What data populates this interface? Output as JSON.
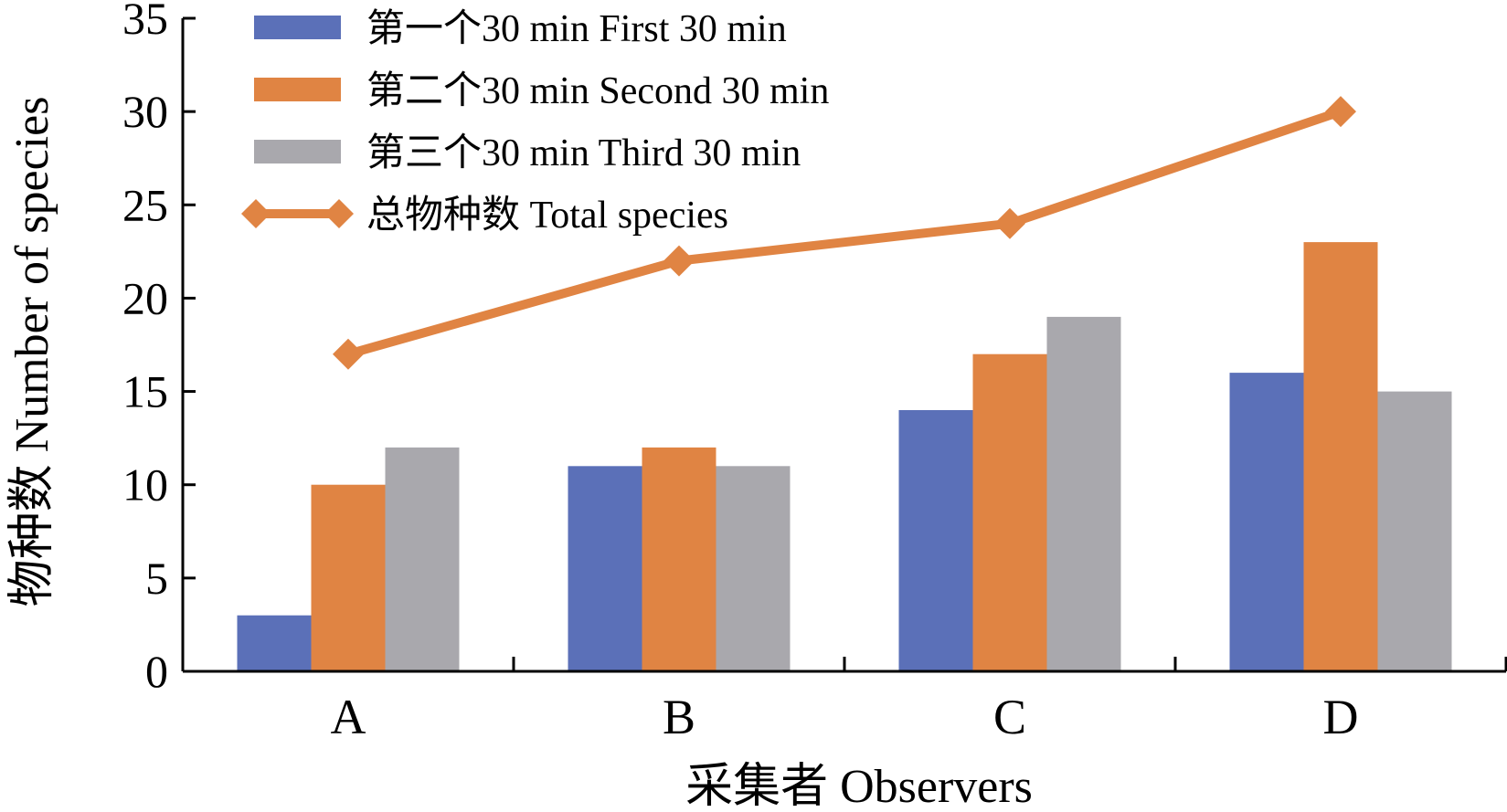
{
  "chart_data": {
    "type": "bar",
    "xlabel": "采集者 Observers",
    "ylabel": "物种数 Number of species",
    "ylim": [
      0,
      35
    ],
    "yticks": [
      0,
      5,
      10,
      15,
      20,
      25,
      30,
      35
    ],
    "categories": [
      "A",
      "B",
      "C",
      "D"
    ],
    "series": [
      {
        "name": "第一个30 min First 30 min",
        "type": "bar",
        "color": "#5B70B8",
        "values": [
          3,
          11,
          14,
          16
        ]
      },
      {
        "name": "第二个30 min Second 30 min",
        "type": "bar",
        "color": "#E08443",
        "values": [
          10,
          12,
          17,
          23
        ]
      },
      {
        "name": "第三个30 min Third 30 min",
        "type": "bar",
        "color": "#A9A8AD",
        "values": [
          12,
          11,
          19,
          15
        ]
      },
      {
        "name": "总物种数 Total species",
        "type": "line",
        "marker": "diamond",
        "color": "#E08443",
        "values": [
          17,
          22,
          24,
          30
        ]
      }
    ],
    "legend": "top-left",
    "grid": false
  }
}
